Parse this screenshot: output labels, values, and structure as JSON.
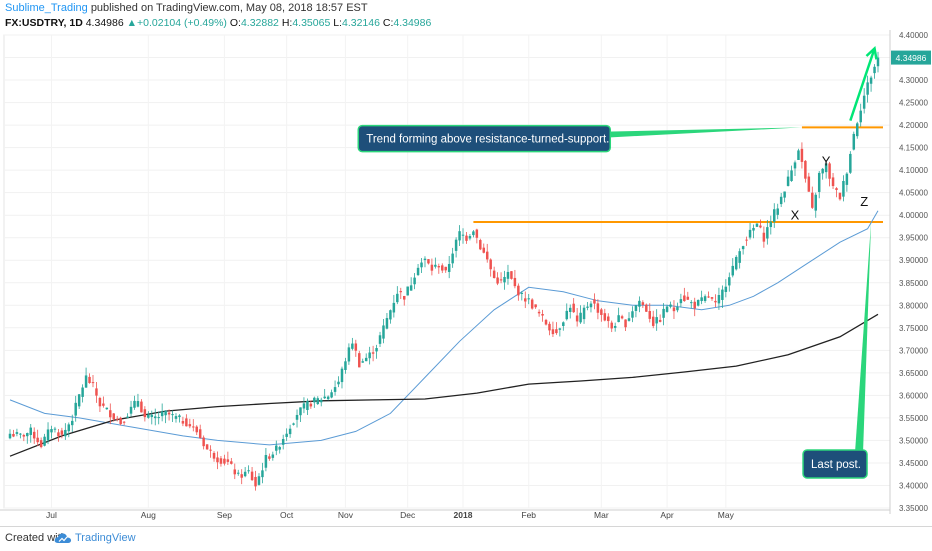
{
  "header": {
    "username": "Sublime_Trading",
    "published_text": "published on TradingView.com, May 08, 2018 18:57 EST",
    "symbol": "FX:USDTRY, 1D",
    "last": "4.34986",
    "change_arrow": "▲",
    "change": "+0.02104 (+0.49%)",
    "open_label": "O:",
    "open": "4.32882",
    "high_label": "H:",
    "high": "4.35065",
    "low_label": "L:",
    "low": "4.32146",
    "close_label": "C:",
    "close": "4.34986"
  },
  "footer": {
    "created_with": "Created with",
    "brand": "TradingView",
    "logo_icon": "tradingview-cloud-icon"
  },
  "colors": {
    "up": "#26a69a",
    "down": "#ef5350",
    "ma_short": "#5b9bd5",
    "ma_long": "#222222",
    "resistance": "#ff9800",
    "arrow": "#00e676",
    "callout_fill": "#1e4f7a",
    "callout_border": "#2bd67b",
    "price_tag": "#26a69a"
  },
  "chart_data": {
    "type": "candlestick",
    "symbol": "FX:USDTRY",
    "interval": "1D",
    "y_axis": {
      "ticks": [
        "3.35000",
        "3.40000",
        "3.45000",
        "3.50000",
        "3.55000",
        "3.60000",
        "3.65000",
        "3.70000",
        "3.75000",
        "3.80000",
        "3.85000",
        "3.90000",
        "3.95000",
        "4.00000",
        "4.05000",
        "4.10000",
        "4.15000",
        "4.20000",
        "4.25000",
        "4.30000",
        "4.35000",
        "4.40000"
      ],
      "range": [
        3.35,
        4.4
      ],
      "last_price_tag": "4.34986",
      "position": "right"
    },
    "x_axis": {
      "ticks": [
        "Jul",
        "Aug",
        "Sep",
        "Oct",
        "Nov",
        "Dec",
        "2018",
        "Feb",
        "Mar",
        "Apr",
        "May"
      ],
      "range": [
        "2017-06-21",
        "2018-05-09"
      ]
    },
    "closes": [
      [
        0,
        3.515
      ],
      [
        3,
        3.51
      ],
      [
        6,
        3.52
      ],
      [
        9,
        3.49
      ],
      [
        12,
        3.53
      ],
      [
        15,
        3.51
      ],
      [
        18,
        3.55
      ],
      [
        20,
        3.6
      ],
      [
        22,
        3.64
      ],
      [
        24,
        3.62
      ],
      [
        26,
        3.58
      ],
      [
        29,
        3.56
      ],
      [
        32,
        3.54
      ],
      [
        35,
        3.57
      ],
      [
        37,
        3.59
      ],
      [
        39,
        3.55
      ],
      [
        42,
        3.55
      ],
      [
        45,
        3.56
      ],
      [
        48,
        3.55
      ],
      [
        51,
        3.54
      ],
      [
        54,
        3.52
      ],
      [
        57,
        3.48
      ],
      [
        60,
        3.46
      ],
      [
        63,
        3.45
      ],
      [
        66,
        3.42
      ],
      [
        69,
        3.43
      ],
      [
        71,
        3.4
      ],
      [
        74,
        3.46
      ],
      [
        77,
        3.48
      ],
      [
        80,
        3.52
      ],
      [
        83,
        3.56
      ],
      [
        86,
        3.58
      ],
      [
        89,
        3.59
      ],
      [
        92,
        3.6
      ],
      [
        95,
        3.63
      ],
      [
        97,
        3.68
      ],
      [
        99,
        3.72
      ],
      [
        101,
        3.67
      ],
      [
        104,
        3.69
      ],
      [
        106,
        3.71
      ],
      [
        108,
        3.75
      ],
      [
        110,
        3.79
      ],
      [
        112,
        3.83
      ],
      [
        114,
        3.82
      ],
      [
        116,
        3.85
      ],
      [
        118,
        3.89
      ],
      [
        120,
        3.9
      ],
      [
        122,
        3.88
      ],
      [
        124,
        3.89
      ],
      [
        126,
        3.87
      ],
      [
        128,
        3.92
      ],
      [
        130,
        3.96
      ],
      [
        132,
        3.95
      ],
      [
        134,
        3.97
      ],
      [
        136,
        3.93
      ],
      [
        138,
        3.9
      ],
      [
        140,
        3.86
      ],
      [
        142,
        3.85
      ],
      [
        144,
        3.87
      ],
      [
        146,
        3.84
      ],
      [
        148,
        3.82
      ],
      [
        150,
        3.81
      ],
      [
        152,
        3.79
      ],
      [
        154,
        3.77
      ],
      [
        156,
        3.75
      ],
      [
        158,
        3.74
      ],
      [
        160,
        3.77
      ],
      [
        162,
        3.8
      ],
      [
        164,
        3.76
      ],
      [
        166,
        3.79
      ],
      [
        168,
        3.81
      ],
      [
        170,
        3.79
      ],
      [
        172,
        3.77
      ],
      [
        174,
        3.75
      ],
      [
        176,
        3.77
      ],
      [
        178,
        3.76
      ],
      [
        180,
        3.79
      ],
      [
        182,
        3.81
      ],
      [
        184,
        3.79
      ],
      [
        186,
        3.76
      ],
      [
        188,
        3.77
      ],
      [
        190,
        3.8
      ],
      [
        192,
        3.79
      ],
      [
        194,
        3.82
      ],
      [
        196,
        3.81
      ],
      [
        198,
        3.8
      ],
      [
        200,
        3.81
      ],
      [
        202,
        3.82
      ],
      [
        204,
        3.8
      ],
      [
        206,
        3.83
      ],
      [
        208,
        3.87
      ],
      [
        210,
        3.9
      ],
      [
        212,
        3.94
      ],
      [
        214,
        3.96
      ],
      [
        216,
        3.98
      ],
      [
        218,
        3.95
      ],
      [
        220,
        3.99
      ],
      [
        222,
        4.02
      ],
      [
        224,
        4.06
      ],
      [
        226,
        4.1
      ],
      [
        228,
        4.15
      ],
      [
        230,
        4.08
      ],
      [
        232,
        4.01
      ],
      [
        234,
        4.09
      ],
      [
        236,
        4.11
      ],
      [
        238,
        4.06
      ],
      [
        240,
        4.04
      ],
      [
        242,
        4.1
      ],
      [
        244,
        4.18
      ],
      [
        246,
        4.24
      ],
      [
        248,
        4.29
      ],
      [
        250,
        4.33
      ],
      [
        251,
        4.34986
      ]
    ],
    "moving_averages": [
      {
        "period_label": "",
        "color": "ma_short",
        "points": [
          [
            0,
            3.59
          ],
          [
            10,
            3.56
          ],
          [
            20,
            3.55
          ],
          [
            35,
            3.53
          ],
          [
            50,
            3.51
          ],
          [
            60,
            3.5
          ],
          [
            75,
            3.49
          ],
          [
            90,
            3.5
          ],
          [
            100,
            3.52
          ],
          [
            110,
            3.56
          ],
          [
            120,
            3.64
          ],
          [
            130,
            3.72
          ],
          [
            140,
            3.79
          ],
          [
            150,
            3.84
          ],
          [
            160,
            3.83
          ],
          [
            170,
            3.81
          ],
          [
            180,
            3.8
          ],
          [
            190,
            3.8
          ],
          [
            200,
            3.79
          ],
          [
            208,
            3.8
          ],
          [
            215,
            3.82
          ],
          [
            222,
            3.85
          ],
          [
            230,
            3.89
          ],
          [
            240,
            3.94
          ],
          [
            248,
            3.97
          ],
          [
            251,
            4.01
          ]
        ]
      },
      {
        "period_label": "",
        "color": "ma_long",
        "points": [
          [
            0,
            3.465
          ],
          [
            15,
            3.51
          ],
          [
            30,
            3.545
          ],
          [
            45,
            3.565
          ],
          [
            60,
            3.575
          ],
          [
            75,
            3.582
          ],
          [
            90,
            3.588
          ],
          [
            105,
            3.59
          ],
          [
            120,
            3.592
          ],
          [
            135,
            3.605
          ],
          [
            150,
            3.625
          ],
          [
            165,
            3.632
          ],
          [
            180,
            3.64
          ],
          [
            195,
            3.652
          ],
          [
            210,
            3.665
          ],
          [
            225,
            3.69
          ],
          [
            240,
            3.73
          ],
          [
            251,
            3.78
          ]
        ]
      }
    ],
    "horizontal_levels": [
      {
        "price": 3.985,
        "from_index": 134,
        "to_index": 251
      },
      {
        "price": 4.195,
        "from_index": 229,
        "to_index": 251
      }
    ],
    "annotations": [
      {
        "text": "Trend forming above resistance-turned-support.",
        "price": 4.17,
        "index": 173,
        "pointer_to": {
          "index": 229,
          "price": 4.195
        }
      },
      {
        "text": "Last post.",
        "price": 3.45,
        "index": 238,
        "pointer_to": {
          "index": 249,
          "price": 3.985
        }
      },
      {
        "text": "X",
        "price": 3.99,
        "index": 227
      },
      {
        "text": "Y",
        "price": 4.11,
        "index": 236
      },
      {
        "text": "Z",
        "price": 4.02,
        "index": 247
      },
      {
        "text": "",
        "arrow_from": {
          "index": 243,
          "price": 4.21
        },
        "arrow_to": {
          "index": 250,
          "price": 4.37
        }
      }
    ],
    "grid": true,
    "legend": "none"
  }
}
